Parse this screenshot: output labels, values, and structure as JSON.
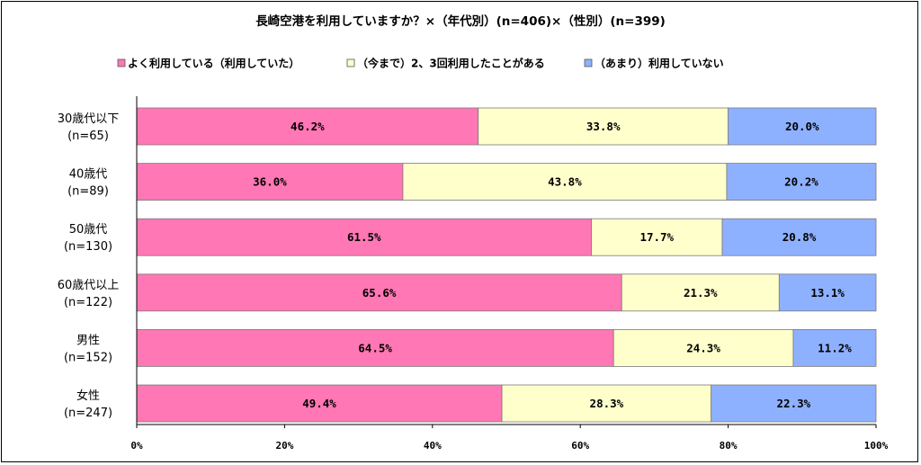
{
  "chart_data": {
    "type": "bar",
    "orientation": "horizontal-stacked-100",
    "title": "長崎空港を利用していますか？×（年代別）(n=406)×（性別）(n=399)",
    "categories": [
      [
        "30歳代以下",
        "(n=65)"
      ],
      [
        "40歳代",
        "(n=89)"
      ],
      [
        "50歳代",
        "(n=130)"
      ],
      [
        "60歳代以上",
        "(n=122)"
      ],
      [
        "男性",
        "(n=152)"
      ],
      [
        "女性",
        "(n=247)"
      ]
    ],
    "series": [
      {
        "name": "よく利用している（利用していた）",
        "color": "#ff77b4",
        "values": [
          46.2,
          36.0,
          61.5,
          65.6,
          64.5,
          49.4
        ],
        "labels": [
          "46.2%",
          "36.0%",
          "61.5%",
          "65.6%",
          "64.5%",
          "49.4%"
        ]
      },
      {
        "name": "（今まで）2、3回利用したことがある",
        "color": "#ffffcc",
        "values": [
          33.8,
          43.8,
          17.7,
          21.3,
          24.3,
          28.3
        ],
        "labels": [
          "33.8%",
          "43.8%",
          "17.7%",
          "21.3%",
          "24.3%",
          "28.3%"
        ]
      },
      {
        "name": "（あまり）利用していない",
        "color": "#8eb1ff",
        "values": [
          20.0,
          20.2,
          20.8,
          13.1,
          11.2,
          22.3
        ],
        "labels": [
          "20.0%",
          "20.2%",
          "20.8%",
          "13.1%",
          "11.2%",
          "22.3%"
        ]
      }
    ],
    "x_ticks": [
      "0%",
      "20%",
      "40%",
      "60%",
      "80%",
      "100%"
    ],
    "xlim": [
      0,
      100
    ],
    "legend_position": "top",
    "grid": false
  }
}
